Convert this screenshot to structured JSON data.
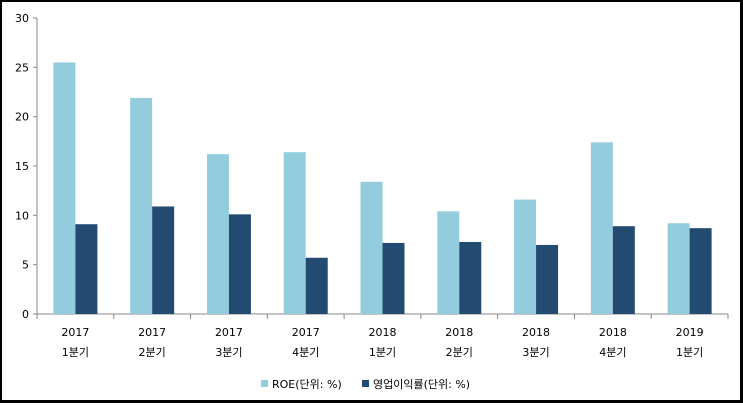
{
  "chart_data": {
    "type": "bar",
    "title": "",
    "xlabel": "",
    "ylabel": "",
    "ylim": [
      0,
      30
    ],
    "yticks": [
      0,
      5,
      10,
      15,
      20,
      25,
      30
    ],
    "grid": false,
    "legend_position": "bottom",
    "categories": [
      [
        "2017",
        "1분기"
      ],
      [
        "2017",
        "2분기"
      ],
      [
        "2017",
        "3분기"
      ],
      [
        "2017",
        "4분기"
      ],
      [
        "2018",
        "1분기"
      ],
      [
        "2018",
        "2분기"
      ],
      [
        "2018",
        "3분기"
      ],
      [
        "2018",
        "4분기"
      ],
      [
        "2019",
        "1분기"
      ]
    ],
    "series": [
      {
        "name": "ROE(단위: %)",
        "color": "#93cddd",
        "values": [
          25.5,
          21.9,
          16.2,
          16.4,
          13.4,
          10.4,
          11.6,
          17.4,
          9.2
        ]
      },
      {
        "name": "영업이익률(단위: %)",
        "color": "#234b72",
        "values": [
          9.1,
          10.9,
          10.1,
          5.7,
          7.2,
          7.3,
          7.0,
          8.9,
          8.7
        ]
      }
    ]
  }
}
